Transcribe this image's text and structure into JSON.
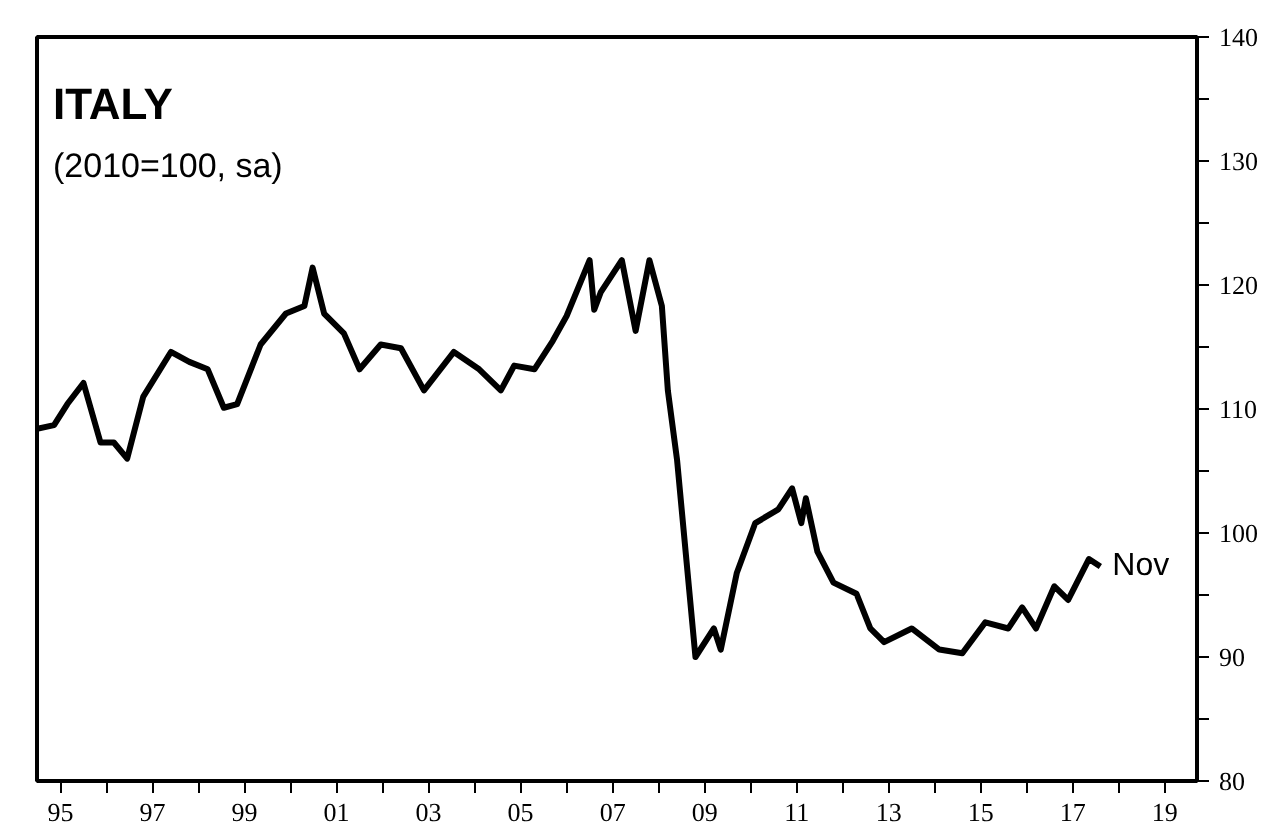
{
  "chart_data": {
    "type": "line",
    "title": "ITALY",
    "subtitle": "(2010=100, sa)",
    "x": [
      1994.49,
      1994.86,
      1995.15,
      1995.5,
      1995.87,
      1996.16,
      1996.45,
      1996.8,
      1997.4,
      1997.8,
      1998.2,
      1998.55,
      1998.84,
      1999.35,
      1999.9,
      2000.3,
      2000.48,
      2000.73,
      2001.16,
      2001.5,
      2001.96,
      2002.4,
      2002.9,
      2003.55,
      2004.1,
      2004.57,
      2004.86,
      2005.3,
      2005.7,
      2006.0,
      2006.5,
      2006.6,
      2006.74,
      2007.2,
      2007.5,
      2007.8,
      2008.07,
      2008.2,
      2008.4,
      2008.8,
      2009.2,
      2009.35,
      2009.7,
      2010.1,
      2010.6,
      2010.9,
      2011.1,
      2011.2,
      2011.45,
      2011.8,
      2012.3,
      2012.6,
      2012.9,
      2013.5,
      2014.1,
      2014.6,
      2015.1,
      2015.6,
      2015.9,
      2016.2,
      2016.6,
      2016.9,
      2017.35,
      2017.6
    ],
    "series": [
      {
        "color": "#000000",
        "values": [
          108.4,
          108.7,
          110.4,
          112.1,
          107.3,
          107.3,
          106.0,
          111.0,
          114.6,
          113.8,
          113.2,
          110.1,
          110.4,
          115.2,
          117.7,
          118.3,
          121.4,
          117.7,
          116.1,
          113.2,
          115.2,
          114.9,
          111.5,
          114.6,
          113.2,
          111.5,
          113.5,
          113.2,
          115.5,
          117.5,
          122.0,
          118.0,
          119.4,
          122.0,
          116.3,
          122.0,
          118.3,
          111.5,
          105.9,
          90.0,
          92.3,
          90.6,
          96.8,
          100.8,
          101.9,
          103.6,
          100.8,
          102.8,
          98.5,
          96.0,
          95.1,
          92.3,
          91.2,
          92.3,
          90.6,
          90.3,
          92.8,
          92.3,
          94.0,
          92.3,
          95.7,
          94.6,
          97.9,
          97.3
        ]
      }
    ],
    "annotations": [
      {
        "text": "Nov",
        "x": 2017.6,
        "y": 97.3
      }
    ],
    "xlim": [
      1994.49,
      2019.7
    ],
    "xticks": [
      {
        "value": 1995,
        "label": "95"
      },
      {
        "value": 1996,
        "label": null
      },
      {
        "value": 1997,
        "label": "97"
      },
      {
        "value": 1998,
        "label": null
      },
      {
        "value": 1999,
        "label": "99"
      },
      {
        "value": 2000,
        "label": null
      },
      {
        "value": 2001,
        "label": "01"
      },
      {
        "value": 2002,
        "label": null
      },
      {
        "value": 2003,
        "label": "03"
      },
      {
        "value": 2004,
        "label": null
      },
      {
        "value": 2005,
        "label": "05"
      },
      {
        "value": 2006,
        "label": null
      },
      {
        "value": 2007,
        "label": "07"
      },
      {
        "value": 2008,
        "label": null
      },
      {
        "value": 2009,
        "label": "09"
      },
      {
        "value": 2010,
        "label": null
      },
      {
        "value": 2011,
        "label": "11"
      },
      {
        "value": 2012,
        "label": null
      },
      {
        "value": 2013,
        "label": "13"
      },
      {
        "value": 2014,
        "label": null
      },
      {
        "value": 2015,
        "label": "15"
      },
      {
        "value": 2016,
        "label": null
      },
      {
        "value": 2017,
        "label": "17"
      },
      {
        "value": 2018,
        "label": null
      },
      {
        "value": 2019,
        "label": "19"
      }
    ],
    "ylim": [
      80,
      140
    ],
    "yticks": [
      80,
      {
        "value": 85,
        "label": null
      },
      90,
      {
        "value": 95,
        "label": null
      },
      100,
      {
        "value": 105,
        "label": null
      },
      110,
      {
        "value": 115,
        "label": null
      },
      120,
      {
        "value": 125,
        "label": null
      },
      130,
      {
        "value": 135,
        "label": null
      },
      140
    ],
    "line_style": "solid"
  }
}
